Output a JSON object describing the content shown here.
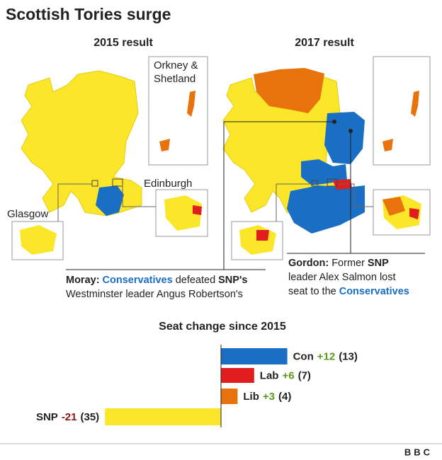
{
  "header": {
    "title": "Scottish Tories surge"
  },
  "maps": [
    {
      "title": "2015 result",
      "insets": [
        "Orkney &",
        "Shetland",
        "Edinburgh",
        "Glasgow"
      ]
    },
    {
      "title": "2017 result"
    }
  ],
  "annotations": {
    "moray": [
      "Moray:",
      "Conservatives",
      "defeated",
      "SNP's",
      "Westminster leader Angus Robertson's"
    ],
    "gordon": [
      "Gordon:",
      "Former",
      "SNP",
      "leader Alex Salmon lost",
      "seat to the",
      "Conservatives"
    ]
  },
  "chart_data": {
    "type": "bar",
    "orientation": "horizontal",
    "title": "Seat change since 2015",
    "categories": [
      "Con",
      "Lab",
      "Lib",
      "SNP"
    ],
    "values": [
      12,
      6,
      3,
      -21
    ],
    "value_labels": [
      "+12",
      "+6",
      "+3",
      "-21"
    ],
    "seat_labels": [
      "(13)",
      "(7)",
      "(4)",
      "(35)"
    ],
    "colors": [
      "#1a6fc4",
      "#e21d1d",
      "#e8720c",
      "#fbe62a"
    ],
    "positive_color": "#5c9a1c",
    "negative_color": "#8e1414",
    "xlim": [
      -40,
      40
    ]
  },
  "footer": {
    "logo": "BBC"
  }
}
